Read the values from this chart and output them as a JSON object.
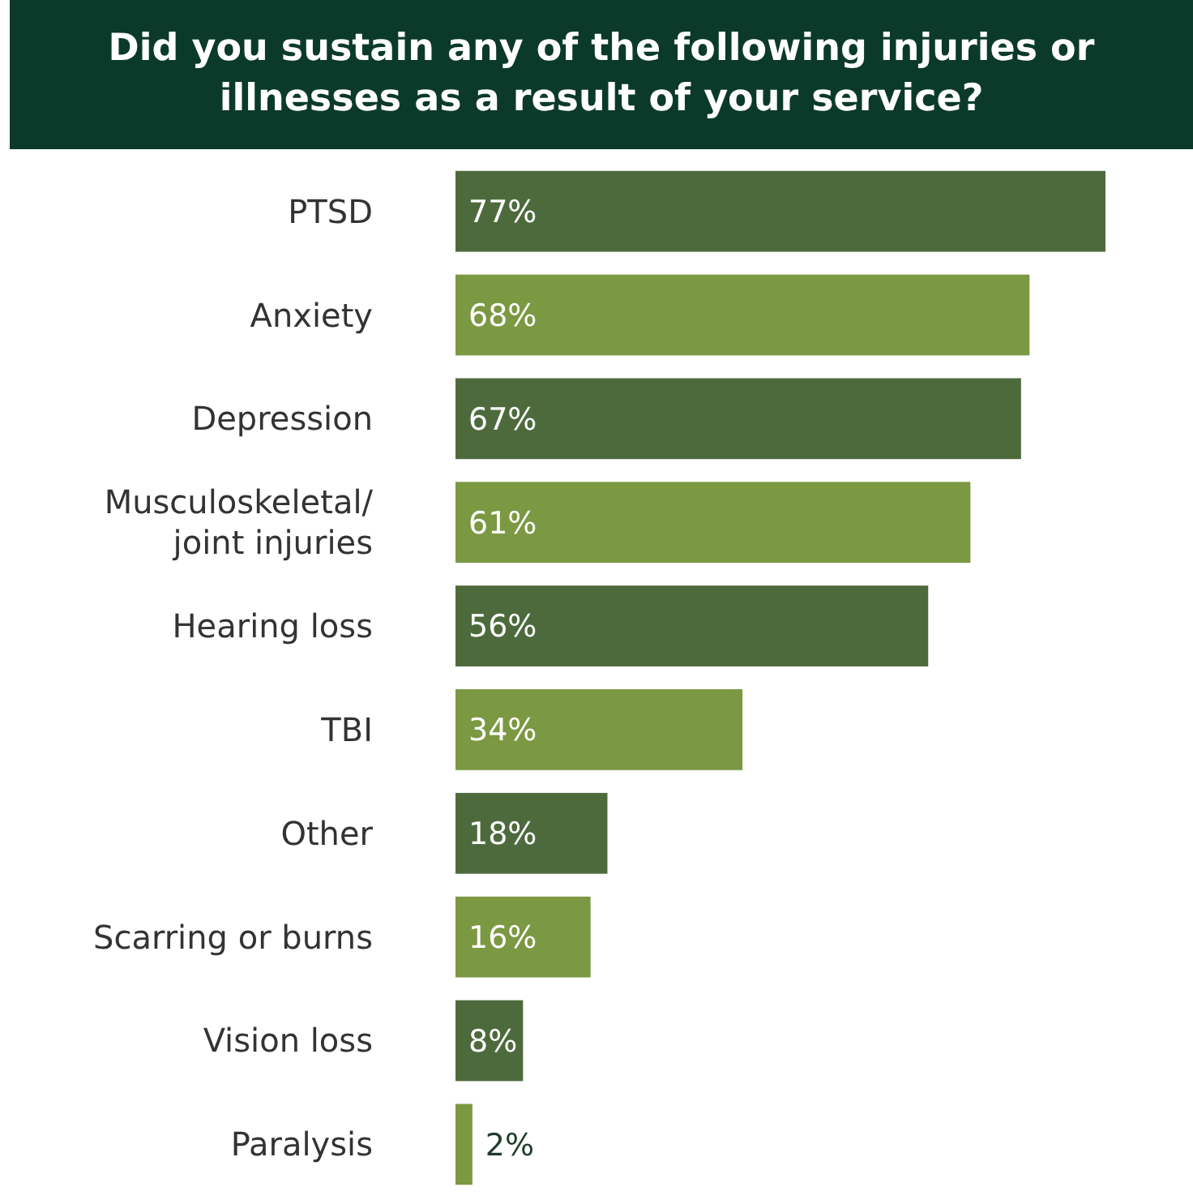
{
  "chart_data": {
    "type": "bar",
    "orientation": "horizontal",
    "title": "Did you sustain any of the following injuries or illnesses as a result of your service?",
    "categories": [
      "PTSD",
      "Anxiety",
      "Depression",
      "Musculoskeletal/ joint injuries",
      "Hearing loss",
      "TBI",
      "Other",
      "Scarring or burns",
      "Vision loss",
      "Paralysis"
    ],
    "values": [
      77,
      68,
      67,
      61,
      56,
      34,
      18,
      16,
      8,
      2
    ],
    "value_labels": [
      "77%",
      "68%",
      "67%",
      "61%",
      "56%",
      "34%",
      "18%",
      "16%",
      "8%",
      "2%"
    ],
    "colors": [
      "#4d6a3d",
      "#7b9842",
      "#4d6a3d",
      "#7b9842",
      "#4d6a3d",
      "#7b9842",
      "#4d6a3d",
      "#7b9842",
      "#4d6a3d",
      "#7b9842"
    ]
  }
}
